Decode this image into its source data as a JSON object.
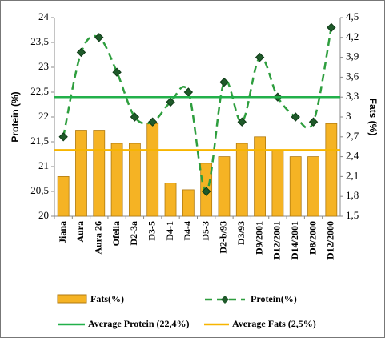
{
  "chart_data": {
    "type": "combo",
    "categories": [
      "Jiana",
      "Aura",
      "Aura 26",
      "Ofelia",
      "D2-3a",
      "D3-5",
      "D4-1",
      "D4-4",
      "D5-3",
      "D2-b/93",
      "D3/93",
      "D9/2001",
      "D12/2001",
      "D14/2001",
      "D8/2000",
      "D12/2000"
    ],
    "series": [
      {
        "name": "Fats(%)",
        "type": "bar",
        "axis": "y2",
        "color": "#f5b324",
        "values": [
          2.1,
          2.8,
          2.8,
          2.6,
          2.6,
          2.9,
          2.0,
          1.9,
          2.3,
          2.4,
          2.6,
          2.7,
          2.5,
          2.4,
          2.4,
          2.9
        ]
      },
      {
        "name": "Protein(%)",
        "type": "line",
        "axis": "y",
        "color": "#2e9e3e",
        "values": [
          21.6,
          23.3,
          23.6,
          22.9,
          22.0,
          21.9,
          22.3,
          22.5,
          20.5,
          22.7,
          21.9,
          23.2,
          22.4,
          22.0,
          21.9,
          23.8
        ]
      }
    ],
    "reference_lines": [
      {
        "name": "Average Protein (22,4%)",
        "axis": "y",
        "value": 22.4,
        "color": "#22b04a"
      },
      {
        "name": "Average Fats (2,5%)",
        "axis": "y2",
        "value": 2.5,
        "color": "#f7b500"
      }
    ],
    "y_label": "Protein (%)",
    "y2_label": "Fats (%)",
    "ylim": [
      20,
      24
    ],
    "yticks": [
      20,
      {
        "value": 20.5,
        "label": "20,5"
      },
      21,
      {
        "value": 21.5,
        "label": "21,5"
      },
      22,
      {
        "value": 22.5,
        "label": "22,5"
      },
      23,
      {
        "value": 23.5,
        "label": "23,5"
      },
      24
    ],
    "y2lim": [
      1.5,
      4.5
    ],
    "y2ticks": [
      {
        "value": 1.5,
        "label": "1,5"
      },
      {
        "value": 1.8,
        "label": "1,8"
      },
      {
        "value": 2.1,
        "label": "2,1"
      },
      {
        "value": 2.4,
        "label": "2,4"
      },
      {
        "value": 2.7,
        "label": "2,7"
      },
      3,
      {
        "value": 3.3,
        "label": "3,3"
      },
      {
        "value": 3.6,
        "label": "3,6"
      },
      {
        "value": 3.9,
        "label": "3,9"
      },
      {
        "value": 4.2,
        "label": "4,2"
      },
      {
        "value": 4.5,
        "label": "4,5"
      }
    ],
    "grid": false
  }
}
